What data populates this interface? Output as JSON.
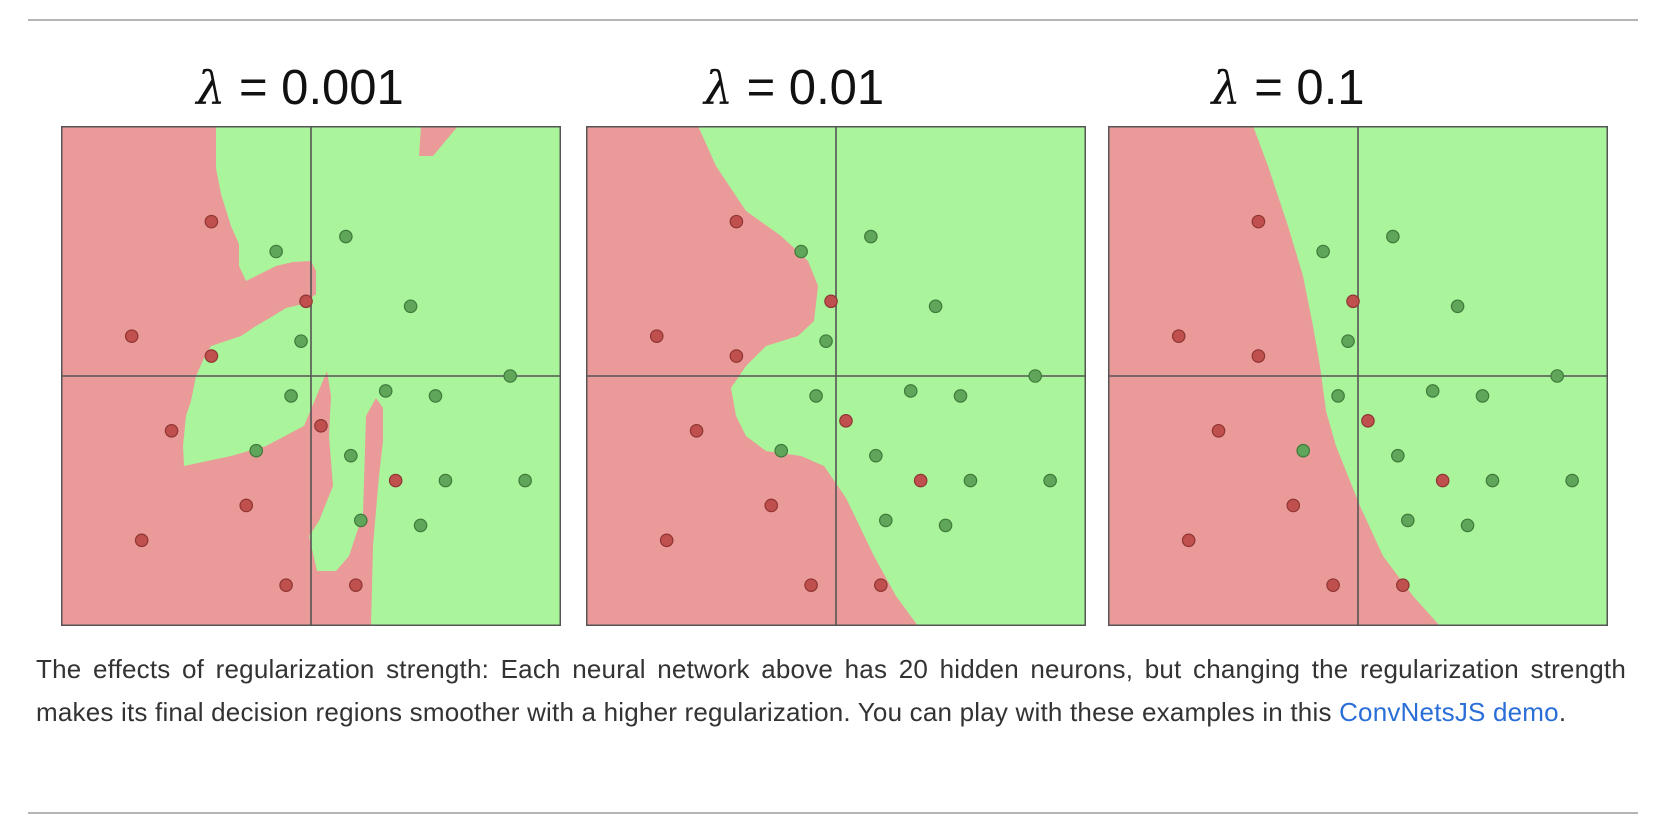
{
  "chart_data": [
    {
      "type": "scatter",
      "title": "λ = 0.001",
      "title_symbol": "λ",
      "title_rest": " = 0.001",
      "xlim": [
        -5,
        5
      ],
      "ylim": [
        -5,
        5
      ],
      "grid": false,
      "axes_lines": true,
      "colors": {
        "red_region": "#ea9a98",
        "green_region": "#aaf59b",
        "red_point": "#c0504e",
        "green_point": "#5fa55a"
      },
      "boundary": "complex",
      "red_points": [
        [
          -2.0,
          3.1
        ],
        [
          -3.6,
          0.8
        ],
        [
          -2.0,
          0.4
        ],
        [
          -0.1,
          1.5
        ],
        [
          -2.8,
          -1.1
        ],
        [
          -1.3,
          -2.6
        ],
        [
          -3.4,
          -3.3
        ],
        [
          0.2,
          -1.0
        ],
        [
          1.7,
          -2.1
        ],
        [
          -0.5,
          -4.2
        ],
        [
          0.9,
          -4.2
        ]
      ],
      "green_points": [
        [
          -0.7,
          2.5
        ],
        [
          0.7,
          2.8
        ],
        [
          2.0,
          1.4
        ],
        [
          -0.2,
          0.7
        ],
        [
          -0.4,
          -0.4
        ],
        [
          1.5,
          -0.3
        ],
        [
          2.5,
          -0.4
        ],
        [
          4.0,
          0.0
        ],
        [
          -1.1,
          -1.5
        ],
        [
          0.8,
          -1.6
        ],
        [
          2.7,
          -2.1
        ],
        [
          4.3,
          -2.1
        ],
        [
          1.0,
          -2.9
        ],
        [
          2.2,
          -3.0
        ]
      ]
    },
    {
      "type": "scatter",
      "title": "λ = 0.01",
      "title_symbol": "λ",
      "title_rest": " = 0.01",
      "xlim": [
        -5,
        5
      ],
      "ylim": [
        -5,
        5
      ],
      "grid": false,
      "axes_lines": true,
      "colors": {
        "red_region": "#ea9a98",
        "green_region": "#aaf59b",
        "red_point": "#c0504e",
        "green_point": "#5fa55a"
      },
      "boundary": "medium",
      "red_points": [
        [
          -2.0,
          3.1
        ],
        [
          -3.6,
          0.8
        ],
        [
          -2.0,
          0.4
        ],
        [
          -0.1,
          1.5
        ],
        [
          -2.8,
          -1.1
        ],
        [
          0.2,
          -0.9
        ],
        [
          -1.3,
          -2.6
        ],
        [
          -3.4,
          -3.3
        ],
        [
          1.7,
          -2.1
        ],
        [
          -0.5,
          -4.2
        ],
        [
          0.9,
          -4.2
        ]
      ],
      "green_points": [
        [
          -0.7,
          2.5
        ],
        [
          0.7,
          2.8
        ],
        [
          2.0,
          1.4
        ],
        [
          -0.2,
          0.7
        ],
        [
          -0.4,
          -0.4
        ],
        [
          1.5,
          -0.3
        ],
        [
          2.5,
          -0.4
        ],
        [
          4.0,
          0.0
        ],
        [
          -1.1,
          -1.5
        ],
        [
          0.8,
          -1.6
        ],
        [
          2.7,
          -2.1
        ],
        [
          4.3,
          -2.1
        ],
        [
          1.0,
          -2.9
        ],
        [
          2.2,
          -3.0
        ]
      ]
    },
    {
      "type": "scatter",
      "title": "λ = 0.1",
      "title_symbol": "λ",
      "title_rest": " = 0.1",
      "xlim": [
        -5,
        5
      ],
      "ylim": [
        -5,
        5
      ],
      "grid": false,
      "axes_lines": true,
      "colors": {
        "red_region": "#ea9a98",
        "green_region": "#aaf59b",
        "red_point": "#c0504e",
        "green_point": "#5fa55a"
      },
      "boundary": "smooth",
      "red_points": [
        [
          -2.0,
          3.1
        ],
        [
          -3.6,
          0.8
        ],
        [
          -2.0,
          0.4
        ],
        [
          -0.1,
          1.5
        ],
        [
          -2.8,
          -1.1
        ],
        [
          0.2,
          -0.9
        ],
        [
          -1.3,
          -2.6
        ],
        [
          -3.4,
          -3.3
        ],
        [
          1.7,
          -2.1
        ],
        [
          -0.5,
          -4.2
        ],
        [
          0.9,
          -4.2
        ]
      ],
      "green_points": [
        [
          -0.7,
          2.5
        ],
        [
          0.7,
          2.8
        ],
        [
          2.0,
          1.4
        ],
        [
          -0.2,
          0.7
        ],
        [
          -0.4,
          -0.4
        ],
        [
          1.5,
          -0.3
        ],
        [
          2.5,
          -0.4
        ],
        [
          4.0,
          0.0
        ],
        [
          -1.1,
          -1.5
        ],
        [
          0.8,
          -1.6
        ],
        [
          2.7,
          -2.1
        ],
        [
          4.3,
          -2.1
        ],
        [
          1.0,
          -2.9
        ],
        [
          2.2,
          -3.0
        ]
      ]
    }
  ],
  "caption": {
    "text": "The effects of regularization strength: Each neural network above has 20 hidden neurons, but changing the regularization strength makes its final decision regions smoother with a higher regularization. You can play with these examples in this ",
    "link_text": "ConvNetsJS demo",
    "tail": "."
  }
}
